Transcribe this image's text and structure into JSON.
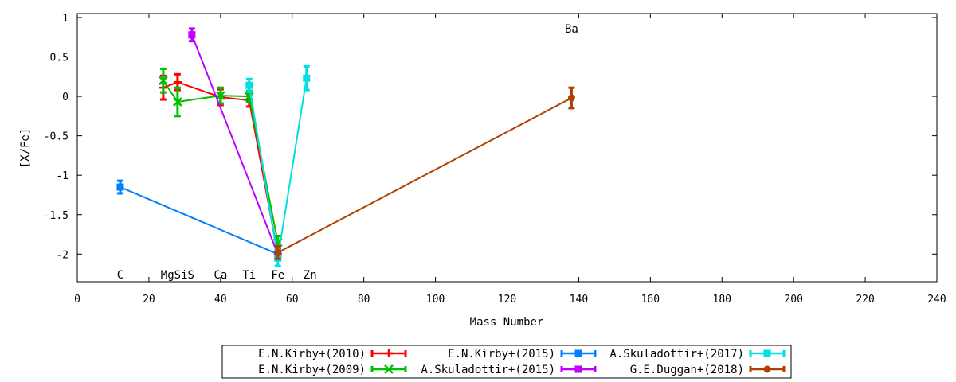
{
  "chart_data": {
    "type": "line",
    "xlabel": "Mass Number",
    "ylabel": "[X/Fe]",
    "xlim": [
      0,
      240
    ],
    "ylim": [
      -2.35,
      1.05
    ],
    "xticks": [
      0,
      20,
      40,
      60,
      80,
      100,
      120,
      140,
      160,
      180,
      200,
      220,
      240
    ],
    "yticks": [
      1,
      0.5,
      0,
      -0.5,
      -1,
      -1.5,
      -2
    ],
    "ytick_labels": [
      "1",
      "0.5",
      "0",
      "-0.5",
      "-1",
      "-1.5",
      "-2"
    ],
    "grid": false,
    "legend_position": "bottom-center",
    "element_labels": [
      {
        "text": "C",
        "x": 12,
        "row": "bottom"
      },
      {
        "text": "MgSiS",
        "x": 28,
        "row": "bottom"
      },
      {
        "text": "Ca",
        "x": 40,
        "row": "bottom"
      },
      {
        "text": "Ti",
        "x": 48,
        "row": "bottom"
      },
      {
        "text": "Fe",
        "x": 56,
        "row": "bottom"
      },
      {
        "text": "Zn",
        "x": 65,
        "row": "bottom"
      },
      {
        "text": "Ba",
        "x": 138,
        "row": "top"
      }
    ],
    "series": [
      {
        "name": "E.N.Kirby+(2010)",
        "color": "#ff0000",
        "marker": "plus",
        "points": [
          [
            24,
            0.11,
            0.15
          ],
          [
            28,
            0.18,
            0.1
          ],
          [
            40,
            -0.01,
            0.1
          ],
          [
            48,
            -0.05,
            0.08
          ],
          [
            56,
            -2.0,
            0.06
          ]
        ]
      },
      {
        "name": "E.N.Kirby+(2009)",
        "color": "#00c000",
        "marker": "cross",
        "points": [
          [
            24,
            0.2,
            0.15
          ],
          [
            28,
            -0.07,
            0.18
          ],
          [
            40,
            0.01,
            0.1
          ],
          [
            48,
            0.0,
            0.07
          ],
          [
            56,
            -1.85,
            0.08
          ]
        ]
      },
      {
        "name": "E.N.Kirby+(2015)",
        "color": "#0080ff",
        "marker": "square",
        "points": [
          [
            12,
            -1.15,
            0.08
          ],
          [
            56,
            -2.0,
            0.06
          ]
        ]
      },
      {
        "name": "A.Skuladottir+(2015)",
        "color": "#c000ff",
        "marker": "square",
        "points": [
          [
            32,
            0.78,
            0.08
          ],
          [
            56,
            -2.0,
            0.06
          ]
        ]
      },
      {
        "name": "A.Skuladottir+(2017)",
        "color": "#00e0e0",
        "marker": "square",
        "points": [
          [
            48,
            0.14,
            0.08
          ],
          [
            56,
            -2.05,
            0.1
          ],
          [
            64,
            0.23,
            0.15
          ]
        ]
      },
      {
        "name": "G.E.Duggan+(2018)",
        "color": "#b04000",
        "marker": "circle",
        "points": [
          [
            56,
            -1.98,
            0.08
          ],
          [
            138,
            -0.02,
            0.13
          ]
        ]
      }
    ]
  }
}
